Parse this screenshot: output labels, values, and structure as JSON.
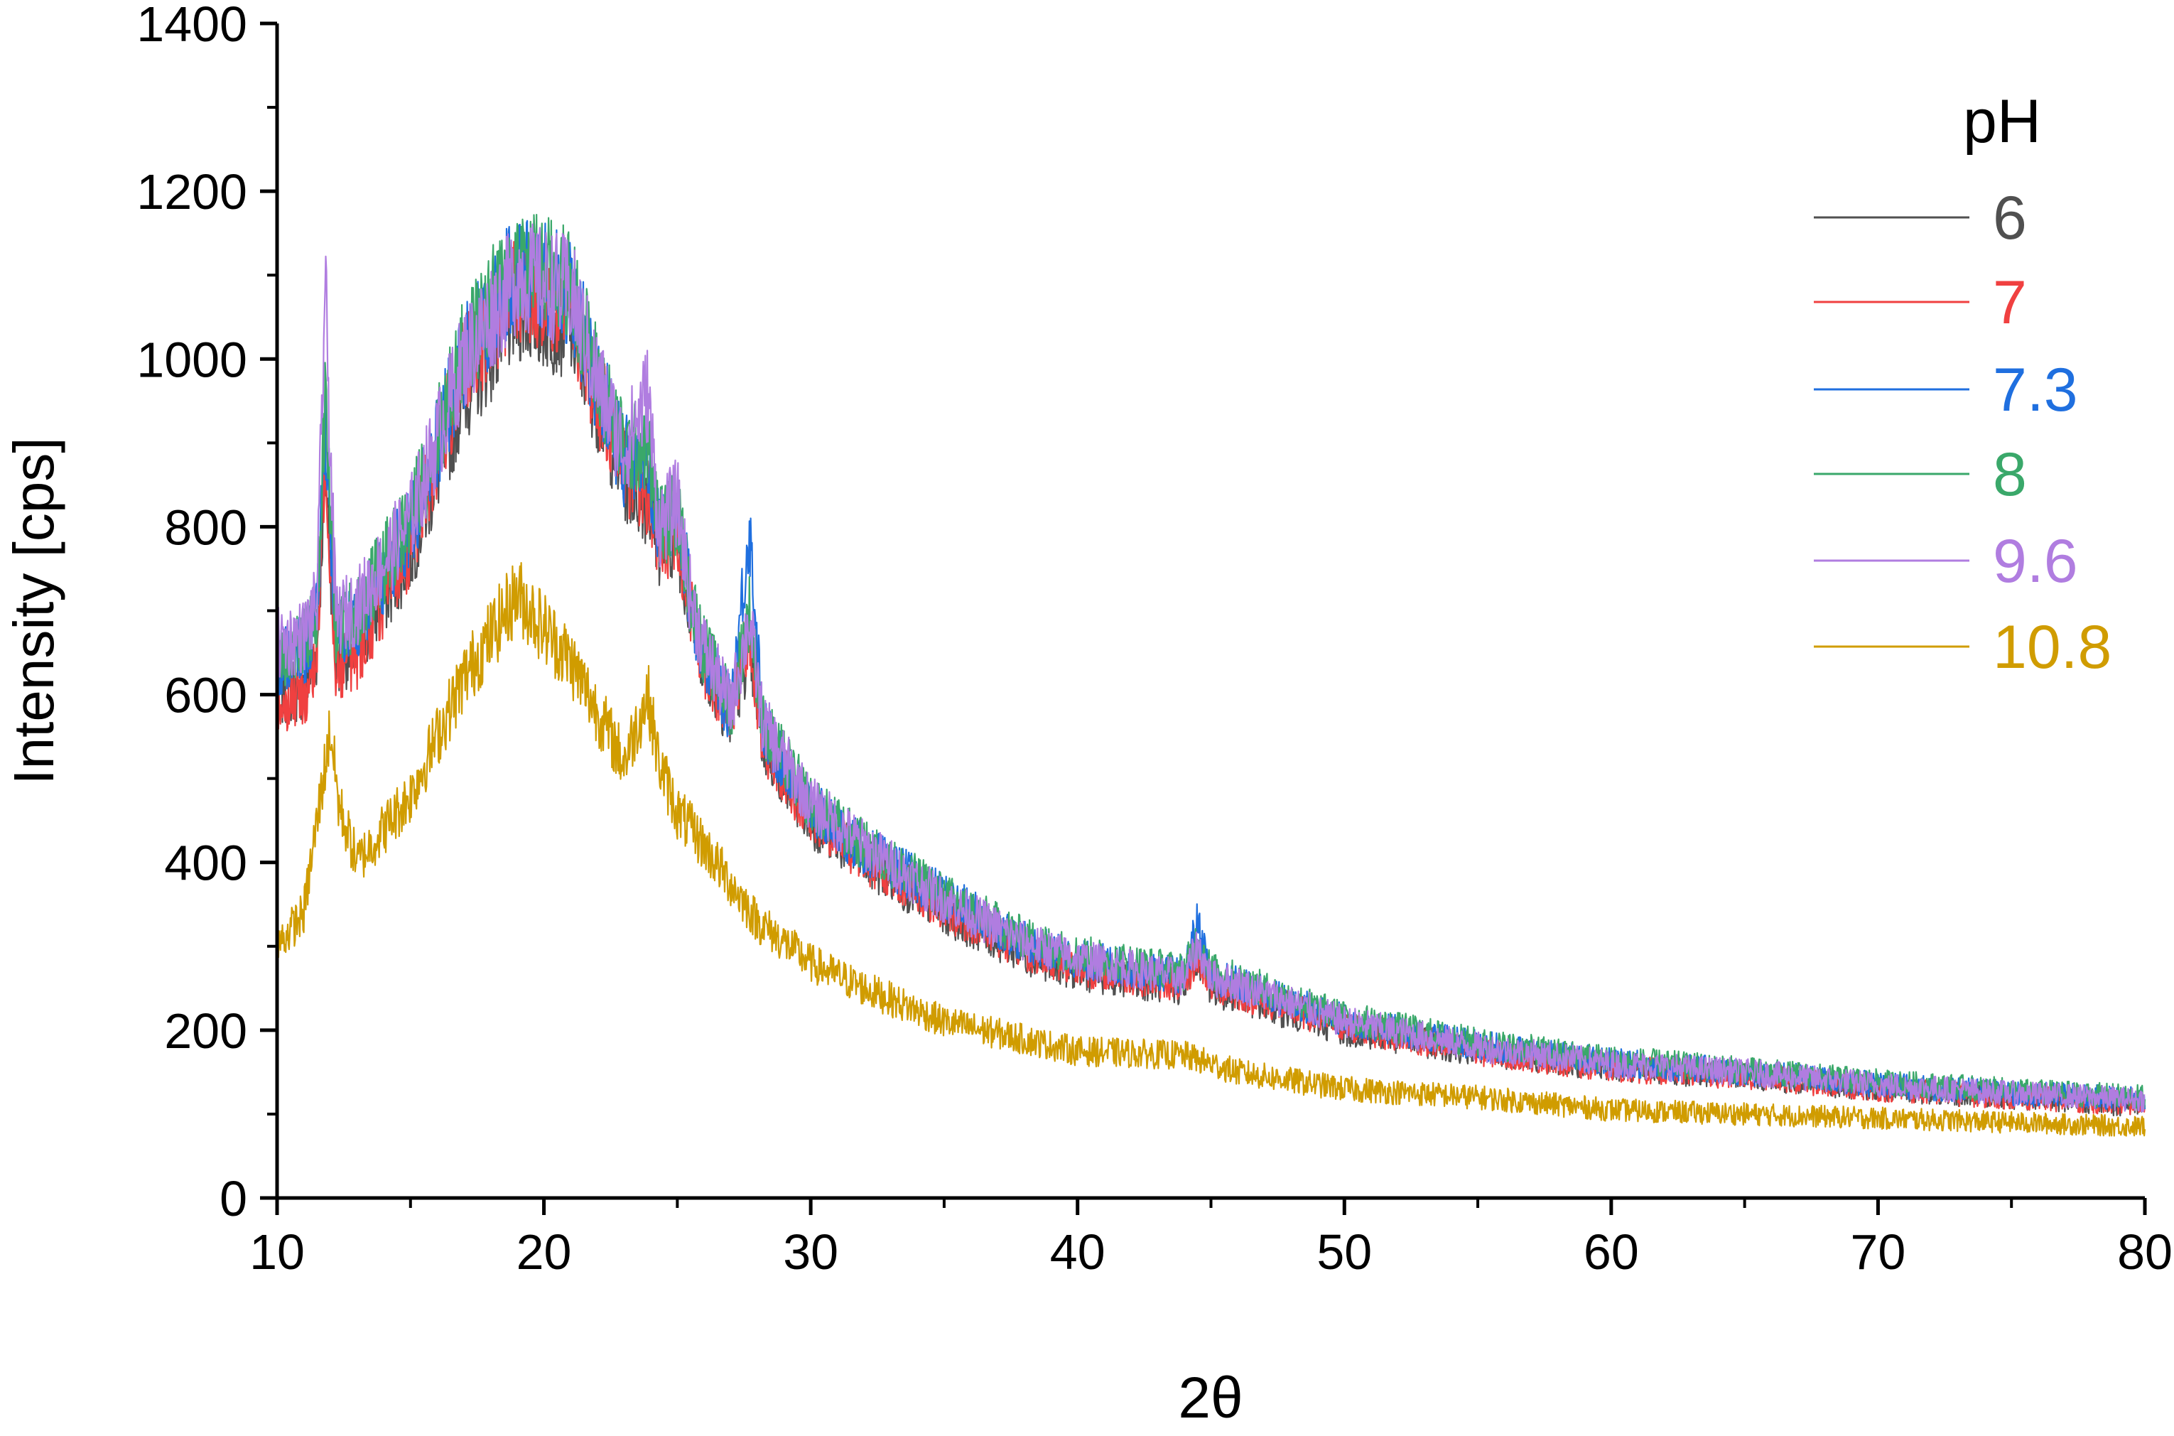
{
  "chart_data": {
    "type": "line",
    "xlabel": "2θ",
    "ylabel": "Intensity [cps]",
    "xlim": [
      10,
      80
    ],
    "ylim": [
      0,
      1400
    ],
    "xticks": [
      10,
      20,
      30,
      40,
      50,
      60,
      70,
      80
    ],
    "yticks": [
      0,
      200,
      400,
      600,
      800,
      1000,
      1200,
      1400
    ],
    "grid": false,
    "legend": {
      "title": "pH",
      "placement": "top-right"
    },
    "series": [
      {
        "name": "6",
        "color": "#505050",
        "x": [
          10,
          11,
          11.5,
          11.8,
          12.2,
          13,
          15,
          17,
          19,
          21,
          22,
          23,
          23.9,
          24.3,
          25,
          25.5,
          26,
          27,
          27.7,
          28.2,
          30,
          32,
          35,
          38,
          40,
          44,
          44.5,
          45,
          46,
          50,
          55,
          60,
          65,
          70,
          75,
          80
        ],
        "y": [
          600,
          610,
          650,
          880,
          640,
          660,
          770,
          960,
          1060,
          1040,
          950,
          860,
          830,
          780,
          790,
          700,
          640,
          570,
          660,
          540,
          450,
          400,
          340,
          290,
          270,
          250,
          290,
          250,
          240,
          200,
          175,
          155,
          145,
          130,
          120,
          110
        ]
      },
      {
        "name": "7",
        "color": "#f04040",
        "x": [
          10,
          11,
          11.5,
          11.8,
          12.2,
          13,
          15,
          17,
          19,
          21,
          22,
          23,
          23.9,
          24.3,
          25,
          25.5,
          26,
          27,
          27.7,
          28.2,
          30,
          32,
          35,
          38,
          40,
          44,
          44.5,
          45,
          46,
          50,
          55,
          60,
          65,
          70,
          75,
          80
        ],
        "y": [
          590,
          600,
          640,
          900,
          630,
          650,
          780,
          990,
          1090,
          1060,
          960,
          870,
          840,
          780,
          800,
          700,
          640,
          570,
          680,
          545,
          455,
          405,
          345,
          295,
          275,
          255,
          290,
          255,
          245,
          205,
          175,
          155,
          145,
          130,
          120,
          112
        ]
      },
      {
        "name": "7.3",
        "color": "#1f6fdf",
        "x": [
          10,
          11,
          11.5,
          11.8,
          12.2,
          13,
          15,
          17,
          19,
          21,
          22,
          23,
          23.9,
          24.3,
          25,
          25.5,
          26,
          27,
          27.7,
          28.2,
          30,
          32,
          35,
          38,
          40,
          44,
          44.5,
          45,
          46,
          50,
          55,
          60,
          65,
          70,
          75,
          80
        ],
        "y": [
          640,
          650,
          690,
          930,
          670,
          690,
          800,
          1000,
          1110,
          1080,
          970,
          880,
          880,
          790,
          830,
          710,
          650,
          580,
          800,
          560,
          465,
          415,
          360,
          305,
          285,
          265,
          330,
          265,
          255,
          212,
          182,
          162,
          150,
          135,
          125,
          118
        ]
      },
      {
        "name": "8",
        "color": "#3aa86a",
        "x": [
          10,
          11,
          11.5,
          11.8,
          12.2,
          13,
          15,
          17,
          19,
          21,
          22,
          23,
          23.9,
          24.3,
          25,
          25.5,
          26,
          27,
          27.7,
          28.2,
          30,
          32,
          35,
          38,
          40,
          44,
          44.5,
          45,
          46,
          50,
          55,
          60,
          65,
          70,
          75,
          80
        ],
        "y": [
          650,
          660,
          700,
          950,
          680,
          700,
          810,
          1010,
          1120,
          1090,
          980,
          890,
          900,
          800,
          820,
          715,
          655,
          585,
          700,
          565,
          470,
          420,
          360,
          310,
          290,
          270,
          310,
          270,
          260,
          215,
          185,
          165,
          152,
          138,
          128,
          120
        ]
      },
      {
        "name": "9.6",
        "color": "#b07de0",
        "x": [
          10,
          11,
          11.5,
          11.8,
          12.2,
          13,
          15,
          17,
          19,
          21,
          22,
          23,
          23.9,
          24.3,
          25,
          25.5,
          26,
          27,
          27.7,
          28.2,
          30,
          32,
          35,
          38,
          40,
          44,
          44.5,
          45,
          46,
          50,
          55,
          60,
          65,
          70,
          75,
          80
        ],
        "y": [
          660,
          670,
          710,
          1090,
          690,
          705,
          810,
          1000,
          1100,
          1080,
          975,
          890,
          960,
          800,
          830,
          715,
          655,
          585,
          690,
          565,
          470,
          420,
          355,
          305,
          285,
          262,
          300,
          262,
          255,
          210,
          180,
          160,
          150,
          135,
          125,
          117
        ]
      },
      {
        "name": "10.8",
        "color": "#d09c00",
        "x": [
          10,
          11,
          11.5,
          12,
          12.3,
          13,
          15,
          17,
          19,
          21,
          23,
          23.9,
          24.3,
          25,
          26,
          28,
          30,
          32,
          35,
          40,
          44,
          46,
          50,
          55,
          60,
          70,
          80
        ],
        "y": [
          300,
          340,
          450,
          560,
          470,
          400,
          480,
          620,
          720,
          640,
          520,
          600,
          520,
          460,
          420,
          330,
          280,
          250,
          210,
          175,
          170,
          150,
          130,
          120,
          105,
          95,
          85
        ]
      }
    ]
  }
}
